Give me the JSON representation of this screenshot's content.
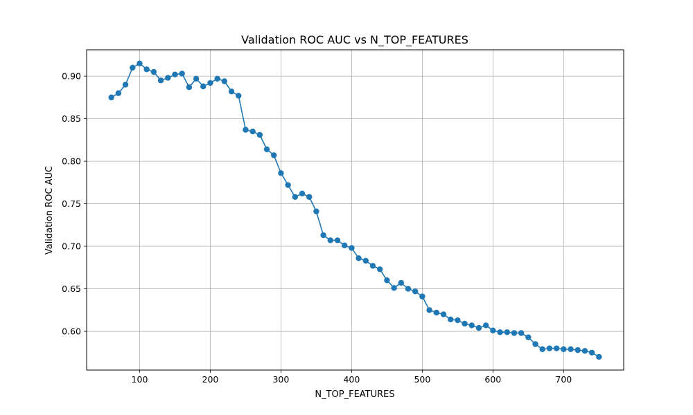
{
  "chart_data": {
    "type": "line",
    "title": "Validation ROC AUC vs N_TOP_FEATURES",
    "xlabel": "N_TOP_FEATURES",
    "ylabel": "Validation ROC AUC",
    "xlim": [
      25,
      785
    ],
    "ylim": [
      0.5545,
      0.931
    ],
    "xticks": [
      100,
      200,
      300,
      400,
      500,
      600,
      700
    ],
    "yticks": [
      0.6,
      0.65,
      0.7,
      0.75,
      0.8,
      0.85,
      0.9
    ],
    "grid": true,
    "marker": "circle",
    "series_color": "#1f77b4",
    "series": [
      {
        "x": [
          60,
          70,
          80,
          90,
          100,
          110,
          120,
          130,
          140,
          150,
          160,
          170,
          180,
          190,
          200,
          210,
          220,
          230,
          240,
          250,
          260,
          270,
          280,
          290,
          300,
          310,
          320,
          330,
          340,
          350,
          360,
          370,
          380,
          390,
          400,
          410,
          420,
          430,
          440,
          450,
          460,
          470,
          480,
          490,
          500,
          510,
          520,
          530,
          540,
          550,
          560,
          570,
          580,
          590,
          600,
          610,
          620,
          630,
          640,
          650,
          660,
          670,
          680,
          690,
          700,
          710,
          720,
          730,
          740,
          750
        ],
        "y": [
          0.875,
          0.88,
          0.89,
          0.91,
          0.915,
          0.908,
          0.905,
          0.895,
          0.898,
          0.902,
          0.903,
          0.887,
          0.897,
          0.888,
          0.892,
          0.897,
          0.894,
          0.882,
          0.877,
          0.837,
          0.835,
          0.831,
          0.814,
          0.807,
          0.786,
          0.772,
          0.758,
          0.762,
          0.758,
          0.741,
          0.713,
          0.707,
          0.707,
          0.701,
          0.698,
          0.686,
          0.683,
          0.677,
          0.673,
          0.66,
          0.651,
          0.657,
          0.65,
          0.647,
          0.641,
          0.625,
          0.622,
          0.62,
          0.614,
          0.613,
          0.609,
          0.607,
          0.604,
          0.607,
          0.601,
          0.599,
          0.599,
          0.598,
          0.598,
          0.593,
          0.585,
          0.579,
          0.58,
          0.58,
          0.579,
          0.579,
          0.578,
          0.577,
          0.575,
          0.57
        ]
      }
    ]
  }
}
